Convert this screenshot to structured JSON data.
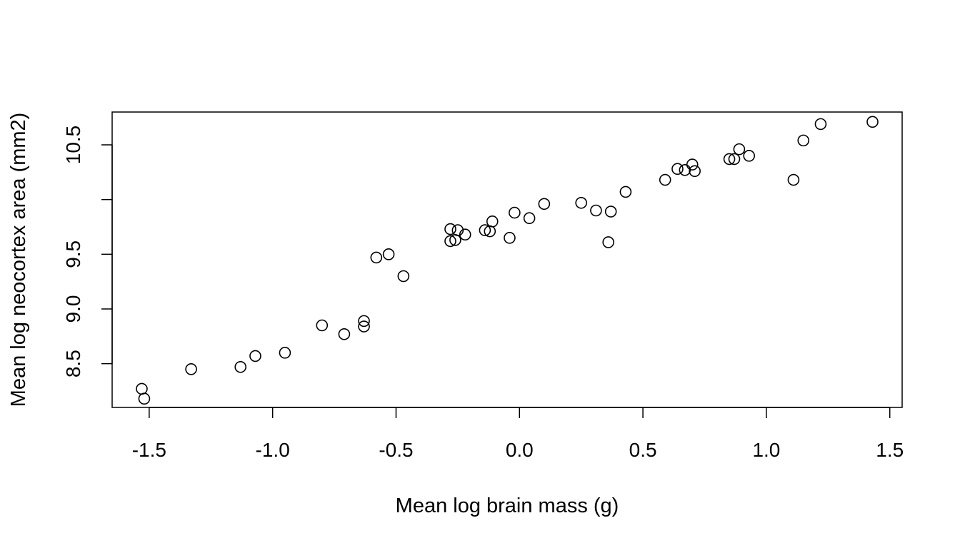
{
  "chart_data": {
    "type": "scatter",
    "title": "",
    "xlabel": "Mean log brain mass (g)",
    "ylabel": "Mean log neocortex area (mm2)",
    "xlim": [
      -1.65,
      1.55
    ],
    "ylim": [
      8.1,
      10.8
    ],
    "x_ticks": [
      -1.5,
      -1.0,
      -0.5,
      0.0,
      0.5,
      1.0,
      1.5
    ],
    "x_tick_labels": [
      "-1.5",
      "-1.0",
      "-0.5",
      "0.0",
      "0.5",
      "1.0",
      "1.5"
    ],
    "y_ticks": [
      8.5,
      9.0,
      9.5,
      10.0,
      10.5
    ],
    "y_tick_labels": [
      "8.5",
      "9.0",
      "9.5",
      "",
      "10.5"
    ],
    "grid": false,
    "marker": "open-circle",
    "points": [
      {
        "x": -1.53,
        "y": 8.27
      },
      {
        "x": -1.52,
        "y": 8.18
      },
      {
        "x": -1.33,
        "y": 8.45
      },
      {
        "x": -1.13,
        "y": 8.47
      },
      {
        "x": -1.07,
        "y": 8.57
      },
      {
        "x": -0.95,
        "y": 8.6
      },
      {
        "x": -0.8,
        "y": 8.85
      },
      {
        "x": -0.71,
        "y": 8.77
      },
      {
        "x": -0.63,
        "y": 8.89
      },
      {
        "x": -0.63,
        "y": 8.84
      },
      {
        "x": -0.58,
        "y": 9.47
      },
      {
        "x": -0.53,
        "y": 9.5
      },
      {
        "x": -0.47,
        "y": 9.3
      },
      {
        "x": -0.28,
        "y": 9.73
      },
      {
        "x": -0.28,
        "y": 9.62
      },
      {
        "x": -0.26,
        "y": 9.63
      },
      {
        "x": -0.25,
        "y": 9.72
      },
      {
        "x": -0.22,
        "y": 9.68
      },
      {
        "x": -0.14,
        "y": 9.72
      },
      {
        "x": -0.12,
        "y": 9.71
      },
      {
        "x": -0.11,
        "y": 9.8
      },
      {
        "x": -0.04,
        "y": 9.65
      },
      {
        "x": -0.02,
        "y": 9.88
      },
      {
        "x": 0.04,
        "y": 9.83
      },
      {
        "x": 0.1,
        "y": 9.96
      },
      {
        "x": 0.25,
        "y": 9.97
      },
      {
        "x": 0.31,
        "y": 9.9
      },
      {
        "x": 0.36,
        "y": 9.61
      },
      {
        "x": 0.37,
        "y": 9.89
      },
      {
        "x": 0.43,
        "y": 10.07
      },
      {
        "x": 0.59,
        "y": 10.18
      },
      {
        "x": 0.64,
        "y": 10.28
      },
      {
        "x": 0.67,
        "y": 10.27
      },
      {
        "x": 0.7,
        "y": 10.32
      },
      {
        "x": 0.71,
        "y": 10.26
      },
      {
        "x": 0.85,
        "y": 10.37
      },
      {
        "x": 0.87,
        "y": 10.37
      },
      {
        "x": 0.89,
        "y": 10.46
      },
      {
        "x": 0.93,
        "y": 10.4
      },
      {
        "x": 1.11,
        "y": 10.18
      },
      {
        "x": 1.15,
        "y": 10.54
      },
      {
        "x": 1.22,
        "y": 10.69
      },
      {
        "x": 1.43,
        "y": 10.71
      }
    ]
  }
}
